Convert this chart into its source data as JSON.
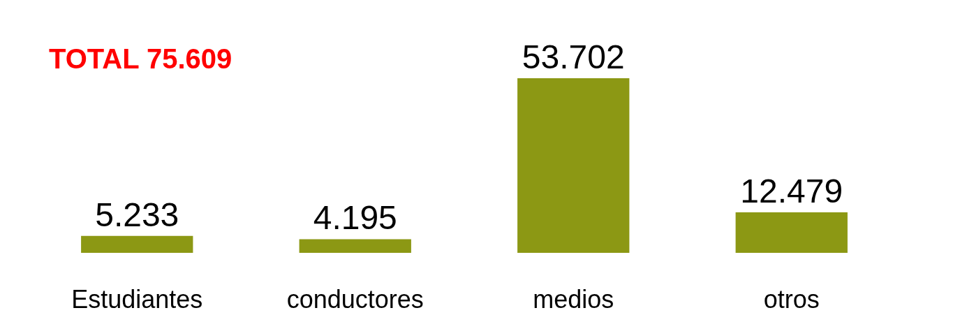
{
  "chart_data": {
    "type": "bar",
    "categories": [
      "Estudiantes",
      "conductores",
      "medios",
      "otros"
    ],
    "values": [
      5233,
      4195,
      53702,
      12479
    ],
    "value_labels": [
      "5.233",
      "4.195",
      "53.702",
      "12.479"
    ],
    "color": "#8c9814",
    "annotations": [
      "TOTAL 75.609"
    ]
  }
}
